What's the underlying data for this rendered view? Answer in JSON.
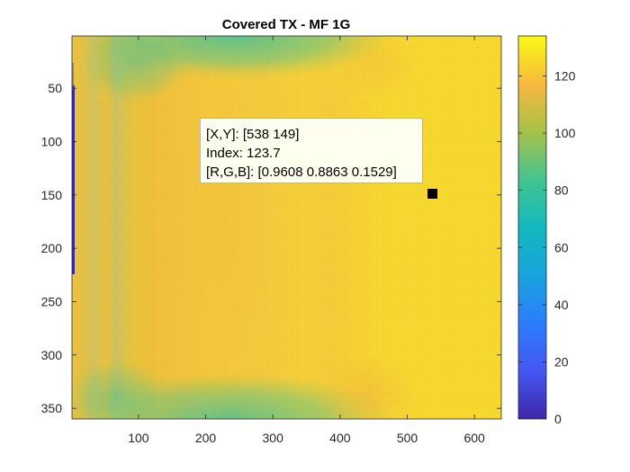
{
  "chart_data": {
    "type": "heatmap",
    "title": "Covered TX - MF 1G",
    "xlabel": "",
    "ylabel": "",
    "xlim": [
      1,
      640
    ],
    "ylim": [
      1,
      360
    ],
    "y_direction": "reverse",
    "x_ticks": [
      100,
      200,
      300,
      400,
      500,
      600
    ],
    "x_tick_labels": [
      "100",
      "200",
      "300",
      "400",
      "500",
      "600"
    ],
    "y_ticks": [
      50,
      100,
      150,
      200,
      250,
      300,
      350
    ],
    "y_tick_labels": [
      "50",
      "100",
      "150",
      "200",
      "250",
      "300",
      "350"
    ],
    "colormap": "parula",
    "clim": [
      0,
      134
    ],
    "colorbar": {
      "ticks": [
        0,
        20,
        40,
        60,
        80,
        100,
        120
      ],
      "tick_labels": [
        "0",
        "20",
        "40",
        "60",
        "80",
        "100",
        "120"
      ]
    },
    "datatip": {
      "line1": "[X,Y]: [538 149]",
      "line2": "Index: 123.7",
      "line3": "[R,G,B]: [0.9608 0.8863 0.1529]",
      "x": 538,
      "y": 149,
      "index": 123.7,
      "rgb": [
        0.9608,
        0.8863,
        0.1529
      ]
    }
  }
}
